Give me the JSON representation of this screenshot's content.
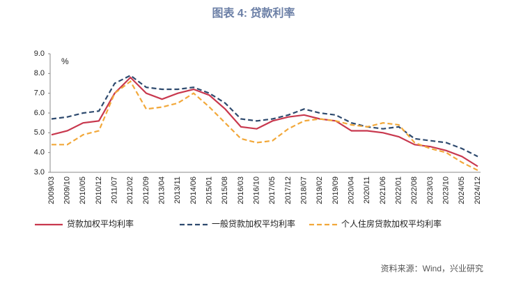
{
  "chart_data": {
    "type": "line",
    "title": "图表 4:  贷款利率",
    "unit_label": "%",
    "source": "资料来源：Wind，兴业研究",
    "categories": [
      "2009/03",
      "2009/10",
      "2010/05",
      "2010/12",
      "2011/07",
      "2012/02",
      "2012/09",
      "2013/04",
      "2013/11",
      "2014/06",
      "2015/01",
      "2015/08",
      "2016/03",
      "2016/10",
      "2017/05",
      "2017/12",
      "2018/07",
      "2019/02",
      "2019/09",
      "2020/04",
      "2020/11",
      "2021/06",
      "2022/01",
      "2022/08",
      "2023/03",
      "2023/10",
      "2024/05",
      "2024/12"
    ],
    "series": [
      {
        "name": "贷款加权平均利率",
        "color": "#c8384e",
        "dash": "solid",
        "values": [
          4.9,
          5.1,
          5.5,
          5.6,
          7.0,
          7.8,
          7.0,
          6.7,
          7.0,
          7.2,
          6.9,
          6.2,
          5.3,
          5.2,
          5.6,
          5.8,
          5.9,
          5.7,
          5.6,
          5.1,
          5.1,
          5.0,
          4.8,
          4.4,
          4.3,
          4.1,
          3.8,
          3.3
        ]
      },
      {
        "name": "一般贷款加权平均利率",
        "color": "#2e4a6e",
        "dash": "dashed",
        "values": [
          5.7,
          5.8,
          6.0,
          6.1,
          7.5,
          7.9,
          7.3,
          7.2,
          7.2,
          7.3,
          7.0,
          6.5,
          5.7,
          5.6,
          5.7,
          5.9,
          6.2,
          6.0,
          5.9,
          5.5,
          5.3,
          5.2,
          5.3,
          4.7,
          4.6,
          4.5,
          4.2,
          3.8
        ]
      },
      {
        "name": "个人住房贷款加权平均利率",
        "color": "#f2a83a",
        "dash": "dashed",
        "values": [
          4.4,
          4.4,
          4.9,
          5.1,
          7.0,
          7.6,
          6.2,
          6.3,
          6.5,
          7.0,
          6.3,
          5.5,
          4.7,
          4.5,
          4.6,
          5.2,
          5.6,
          5.7,
          5.6,
          5.4,
          5.3,
          5.5,
          5.4,
          4.5,
          4.2,
          4.0,
          3.5,
          3.1
        ]
      }
    ],
    "ylim": [
      3,
      9
    ],
    "yticks": [
      {
        "value": 3,
        "label": "3.0"
      },
      {
        "value": 4,
        "label": "4.0"
      },
      {
        "value": 5,
        "label": "5.0"
      },
      {
        "value": 6,
        "label": "6.0"
      },
      {
        "value": 7,
        "label": "7.0"
      },
      {
        "value": 8,
        "label": "8.0"
      },
      {
        "value": 9,
        "label": "9.0"
      }
    ],
    "grid": false,
    "legend": "bottom"
  }
}
